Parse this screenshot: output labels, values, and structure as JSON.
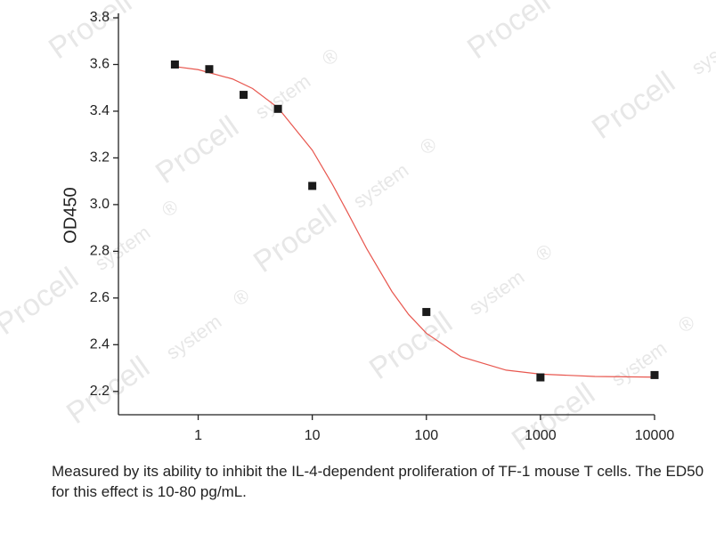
{
  "chart_data": {
    "type": "scatter",
    "y_label": "OD450",
    "caption": "Measured by its ability to inhibit the IL-4-dependent proliferation of TF-1 mouse T cells. The ED50 for this effect is 10-80 pg/mL.",
    "watermark": [
      "Procell",
      "system",
      "®"
    ],
    "x_scale": "log",
    "xlim": [
      0.2,
      10000
    ],
    "xticks": [
      1,
      10,
      100,
      1000,
      10000
    ],
    "ylim": [
      2.1,
      3.8
    ],
    "yticks": [
      2.2,
      2.4,
      2.6,
      2.8,
      {
        "value": 3,
        "label": "3.0"
      },
      3.2,
      3.4,
      3.6,
      3.8
    ],
    "grid": false,
    "series": [
      {
        "style": "line",
        "color": "#e8574f",
        "x": [
          0.625,
          1,
          2,
          3,
          5,
          10,
          15,
          20,
          30,
          50,
          70,
          100,
          200,
          500,
          1000,
          3000,
          10000
        ],
        "values": [
          3.591,
          3.578,
          3.538,
          3.497,
          3.415,
          3.233,
          3.087,
          2.974,
          2.811,
          2.627,
          2.529,
          2.449,
          2.349,
          2.291,
          2.274,
          2.264,
          2.261
        ]
      },
      {
        "style": "square",
        "color": "#1a1a1a",
        "x": [
          0.625,
          1.25,
          2.5,
          5,
          10,
          100,
          1000,
          10000
        ],
        "values": [
          3.6,
          3.58,
          3.47,
          3.41,
          3.08,
          2.54,
          2.26,
          2.27
        ]
      }
    ]
  }
}
